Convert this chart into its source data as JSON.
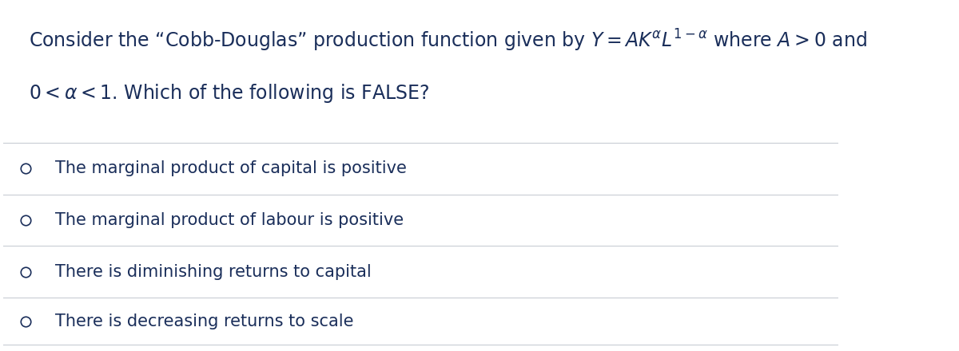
{
  "background_color": "#ffffff",
  "text_color": "#1a2e5a",
  "question_text_part1": "Consider the “Cobb-Douglas” production function given by $Y = AK^{\\alpha} L^{1-\\alpha}$ where $A > 0$ and",
  "question_text_part2": "$0 < \\alpha < 1$. Which of the following is FALSE?",
  "options": [
    "The marginal product of capital is positive",
    "The marginal product of labour is positive",
    "There is diminishing returns to capital",
    "There is decreasing returns to scale"
  ],
  "divider_color": "#c8ccd4",
  "circle_color": "#1a2e5a",
  "font_size_question": 17,
  "font_size_options": 15,
  "fig_width": 12,
  "fig_height": 4.4
}
